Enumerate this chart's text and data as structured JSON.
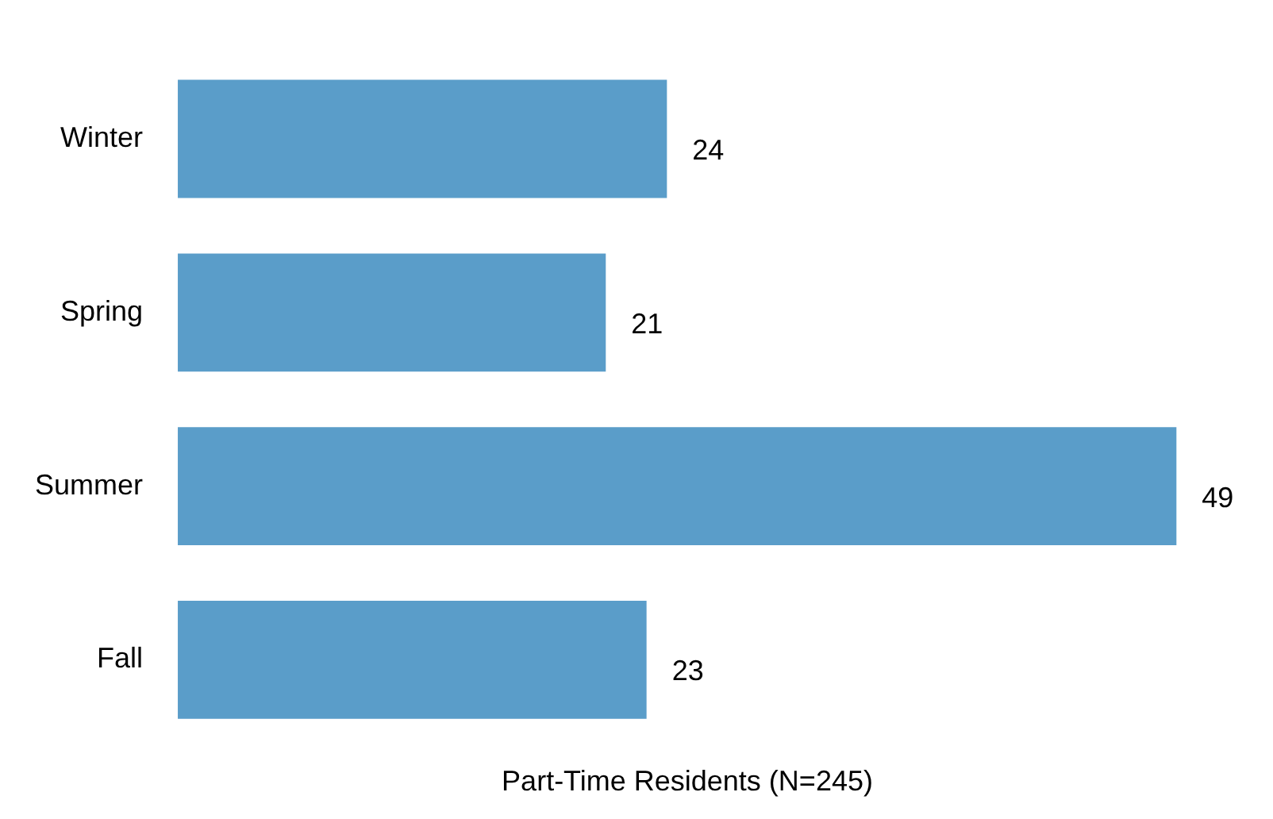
{
  "chart_data": {
    "type": "bar",
    "orientation": "horizontal",
    "xlabel": "Part-Time Residents (N=245)",
    "categories": [
      "Winter",
      "Spring",
      "Summer",
      "Fall"
    ],
    "values": [
      24,
      21,
      49,
      23
    ],
    "color": "#5a9dc9",
    "data_labels": true,
    "grid": false,
    "legend": false
  }
}
